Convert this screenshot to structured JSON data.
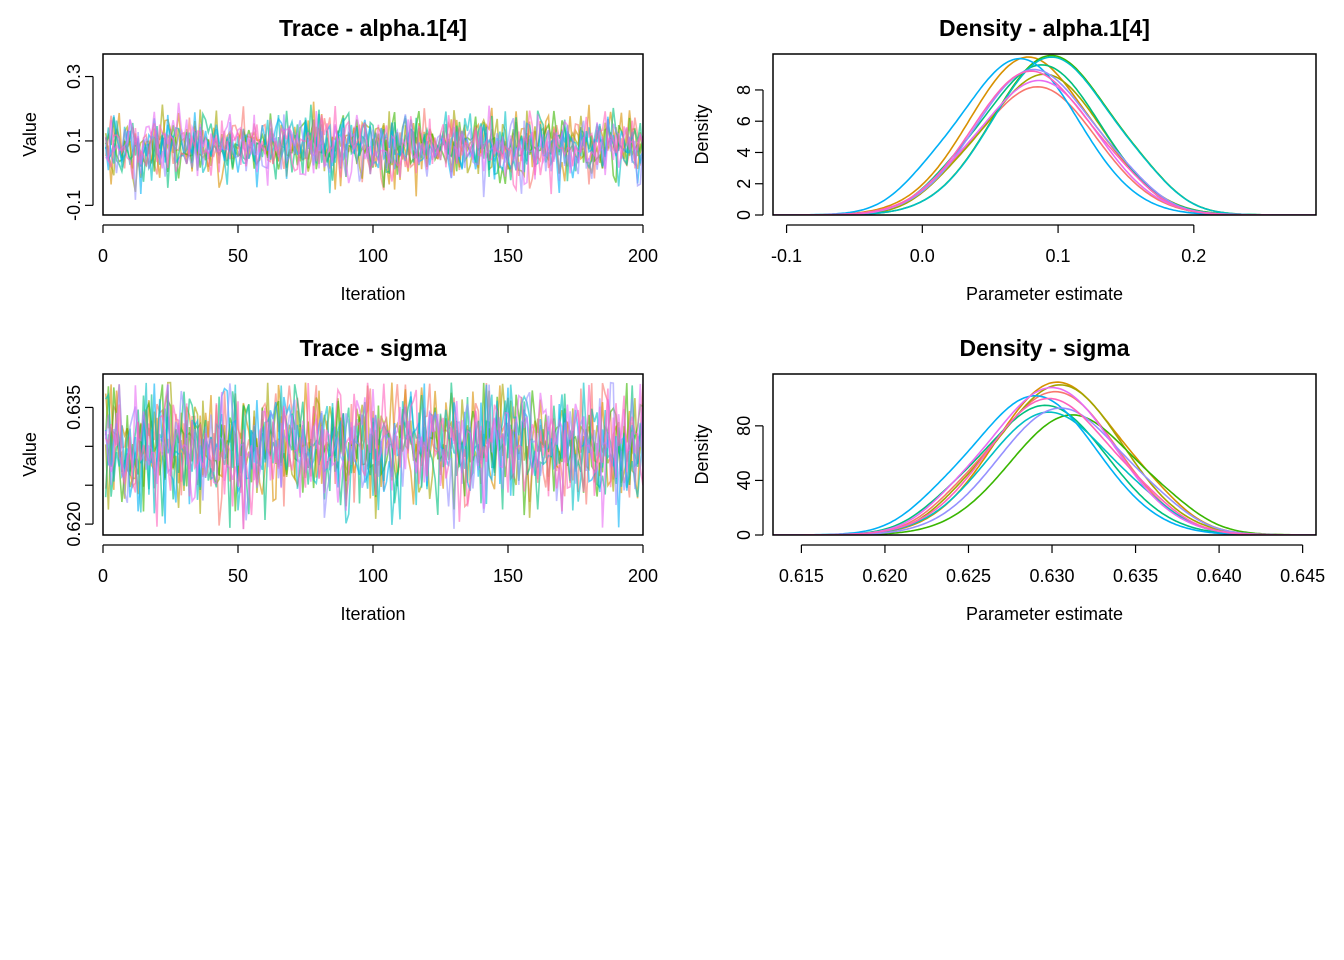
{
  "chart_data": [
    {
      "type": "line",
      "panel": "trace",
      "title": "Trace - alpha.1[4]",
      "xlabel": "Iteration",
      "ylabel": "Value",
      "xlim": [
        0,
        200
      ],
      "ylim": [
        -0.13,
        0.37
      ],
      "xticks": [
        0,
        50,
        100,
        150,
        200
      ],
      "xtick_labels": [
        "0",
        "50",
        "100",
        "150",
        "200"
      ],
      "yticks": [
        -0.1,
        0.1,
        0.3
      ],
      "ytick_labels": [
        "-0.1",
        "0.1",
        "0.3"
      ],
      "n_chains": 10,
      "iterations": 200,
      "chain_summary": {
        "center": 0.085,
        "spread": 0.05,
        "min": -0.12,
        "max": 0.35
      },
      "series": [
        {
          "color": "#F8766D"
        },
        {
          "color": "#D89000"
        },
        {
          "color": "#A3A500"
        },
        {
          "color": "#39B600"
        },
        {
          "color": "#00BF7D"
        },
        {
          "color": "#00BFC4"
        },
        {
          "color": "#00B0F6"
        },
        {
          "color": "#9590FF"
        },
        {
          "color": "#E76BF3"
        },
        {
          "color": "#FF62BC"
        }
      ]
    },
    {
      "type": "line",
      "panel": "density",
      "title": "Density - alpha.1[4]",
      "xlabel": "Parameter estimate",
      "ylabel": "Density",
      "xlim": [
        -0.11,
        0.29
      ],
      "ylim": [
        0,
        10.3
      ],
      "xticks": [
        -0.1,
        0.0,
        0.1,
        0.2
      ],
      "xtick_labels": [
        "-0.1",
        "0.0",
        "0.1",
        "0.2"
      ],
      "yticks": [
        0,
        2,
        4,
        6,
        8
      ],
      "ytick_labels": [
        "0",
        "2",
        "4",
        "6",
        "8"
      ],
      "series": [
        {
          "color": "#F8766D",
          "mode": 0.085,
          "peak": 8.2
        },
        {
          "color": "#D89000",
          "mode": 0.078,
          "peak": 10.1
        },
        {
          "color": "#A3A500",
          "mode": 0.09,
          "peak": 9.0
        },
        {
          "color": "#39B600",
          "mode": 0.095,
          "peak": 10.2
        },
        {
          "color": "#00BF7D",
          "mode": 0.088,
          "peak": 9.6
        },
        {
          "color": "#00BFC4",
          "mode": 0.095,
          "peak": 10.1
        },
        {
          "color": "#00B0F6",
          "mode": 0.072,
          "peak": 10.0
        },
        {
          "color": "#9590FF",
          "mode": 0.082,
          "peak": 9.3
        },
        {
          "color": "#E76BF3",
          "mode": 0.086,
          "peak": 8.6
        },
        {
          "color": "#FF62BC",
          "mode": 0.08,
          "peak": 9.2
        }
      ]
    },
    {
      "type": "line",
      "panel": "trace",
      "title": "Trace - sigma",
      "xlabel": "Iteration",
      "ylabel": "Value",
      "xlim": [
        0,
        200
      ],
      "ylim": [
        0.6186,
        0.6393
      ],
      "xticks": [
        0,
        50,
        100,
        150,
        200
      ],
      "xtick_labels": [
        "0",
        "50",
        "100",
        "150",
        "200"
      ],
      "yticks": [
        0.62,
        0.625,
        0.63,
        0.635
      ],
      "ytick_labels": [
        "0.620",
        "",
        "",
        "0.635"
      ],
      "n_chains": 10,
      "iterations": 200,
      "chain_summary": {
        "center": 0.63,
        "spread": 0.004,
        "min": 0.6193,
        "max": 0.6382
      },
      "series": [
        {
          "color": "#F8766D"
        },
        {
          "color": "#D89000"
        },
        {
          "color": "#A3A500"
        },
        {
          "color": "#39B600"
        },
        {
          "color": "#00BF7D"
        },
        {
          "color": "#00BFC4"
        },
        {
          "color": "#00B0F6"
        },
        {
          "color": "#9590FF"
        },
        {
          "color": "#E76BF3"
        },
        {
          "color": "#FF62BC"
        }
      ]
    },
    {
      "type": "line",
      "panel": "density",
      "title": "Density - sigma",
      "xlabel": "Parameter estimate",
      "ylabel": "Density",
      "xlim": [
        0.6133,
        0.6458
      ],
      "ylim": [
        0,
        118
      ],
      "xticks": [
        0.615,
        0.62,
        0.625,
        0.63,
        0.635,
        0.64,
        0.645
      ],
      "xtick_labels": [
        "0.615",
        "0.620",
        "0.625",
        "0.630",
        "0.635",
        "0.640",
        "0.645"
      ],
      "yticks": [
        0,
        40,
        80
      ],
      "ytick_labels": [
        "0",
        "40",
        "80"
      ],
      "series": [
        {
          "color": "#F8766D",
          "mode": 0.6302,
          "peak": 105
        },
        {
          "color": "#D89000",
          "mode": 0.6303,
          "peak": 112
        },
        {
          "color": "#A3A500",
          "mode": 0.6305,
          "peak": 110
        },
        {
          "color": "#39B600",
          "mode": 0.6312,
          "peak": 88
        },
        {
          "color": "#00BF7D",
          "mode": 0.6296,
          "peak": 95
        },
        {
          "color": "#00BFC4",
          "mode": 0.6298,
          "peak": 90
        },
        {
          "color": "#00B0F6",
          "mode": 0.629,
          "peak": 102
        },
        {
          "color": "#9590FF",
          "mode": 0.6305,
          "peak": 93
        },
        {
          "color": "#E76BF3",
          "mode": 0.63,
          "peak": 108
        },
        {
          "color": "#FF62BC",
          "mode": 0.6298,
          "peak": 100
        }
      ]
    }
  ]
}
